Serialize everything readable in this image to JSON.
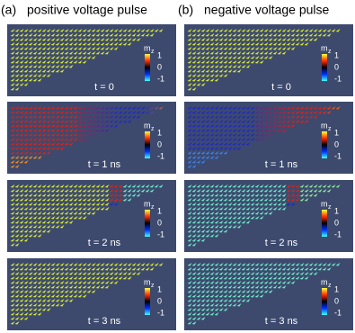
{
  "panels": [
    {
      "label": "(a)",
      "title": "positive voltage pulse"
    },
    {
      "label": "(b)",
      "title": "negative voltage pulse"
    }
  ],
  "rows": [
    {
      "time": "t = 0"
    },
    {
      "time": "t = 1 ns"
    },
    {
      "time": "t = 2 ns"
    },
    {
      "time": "t = 3 ns"
    }
  ],
  "colorbar": {
    "label": "m",
    "subscript": "z",
    "ticks": [
      "1",
      "0",
      "-1"
    ]
  }
}
